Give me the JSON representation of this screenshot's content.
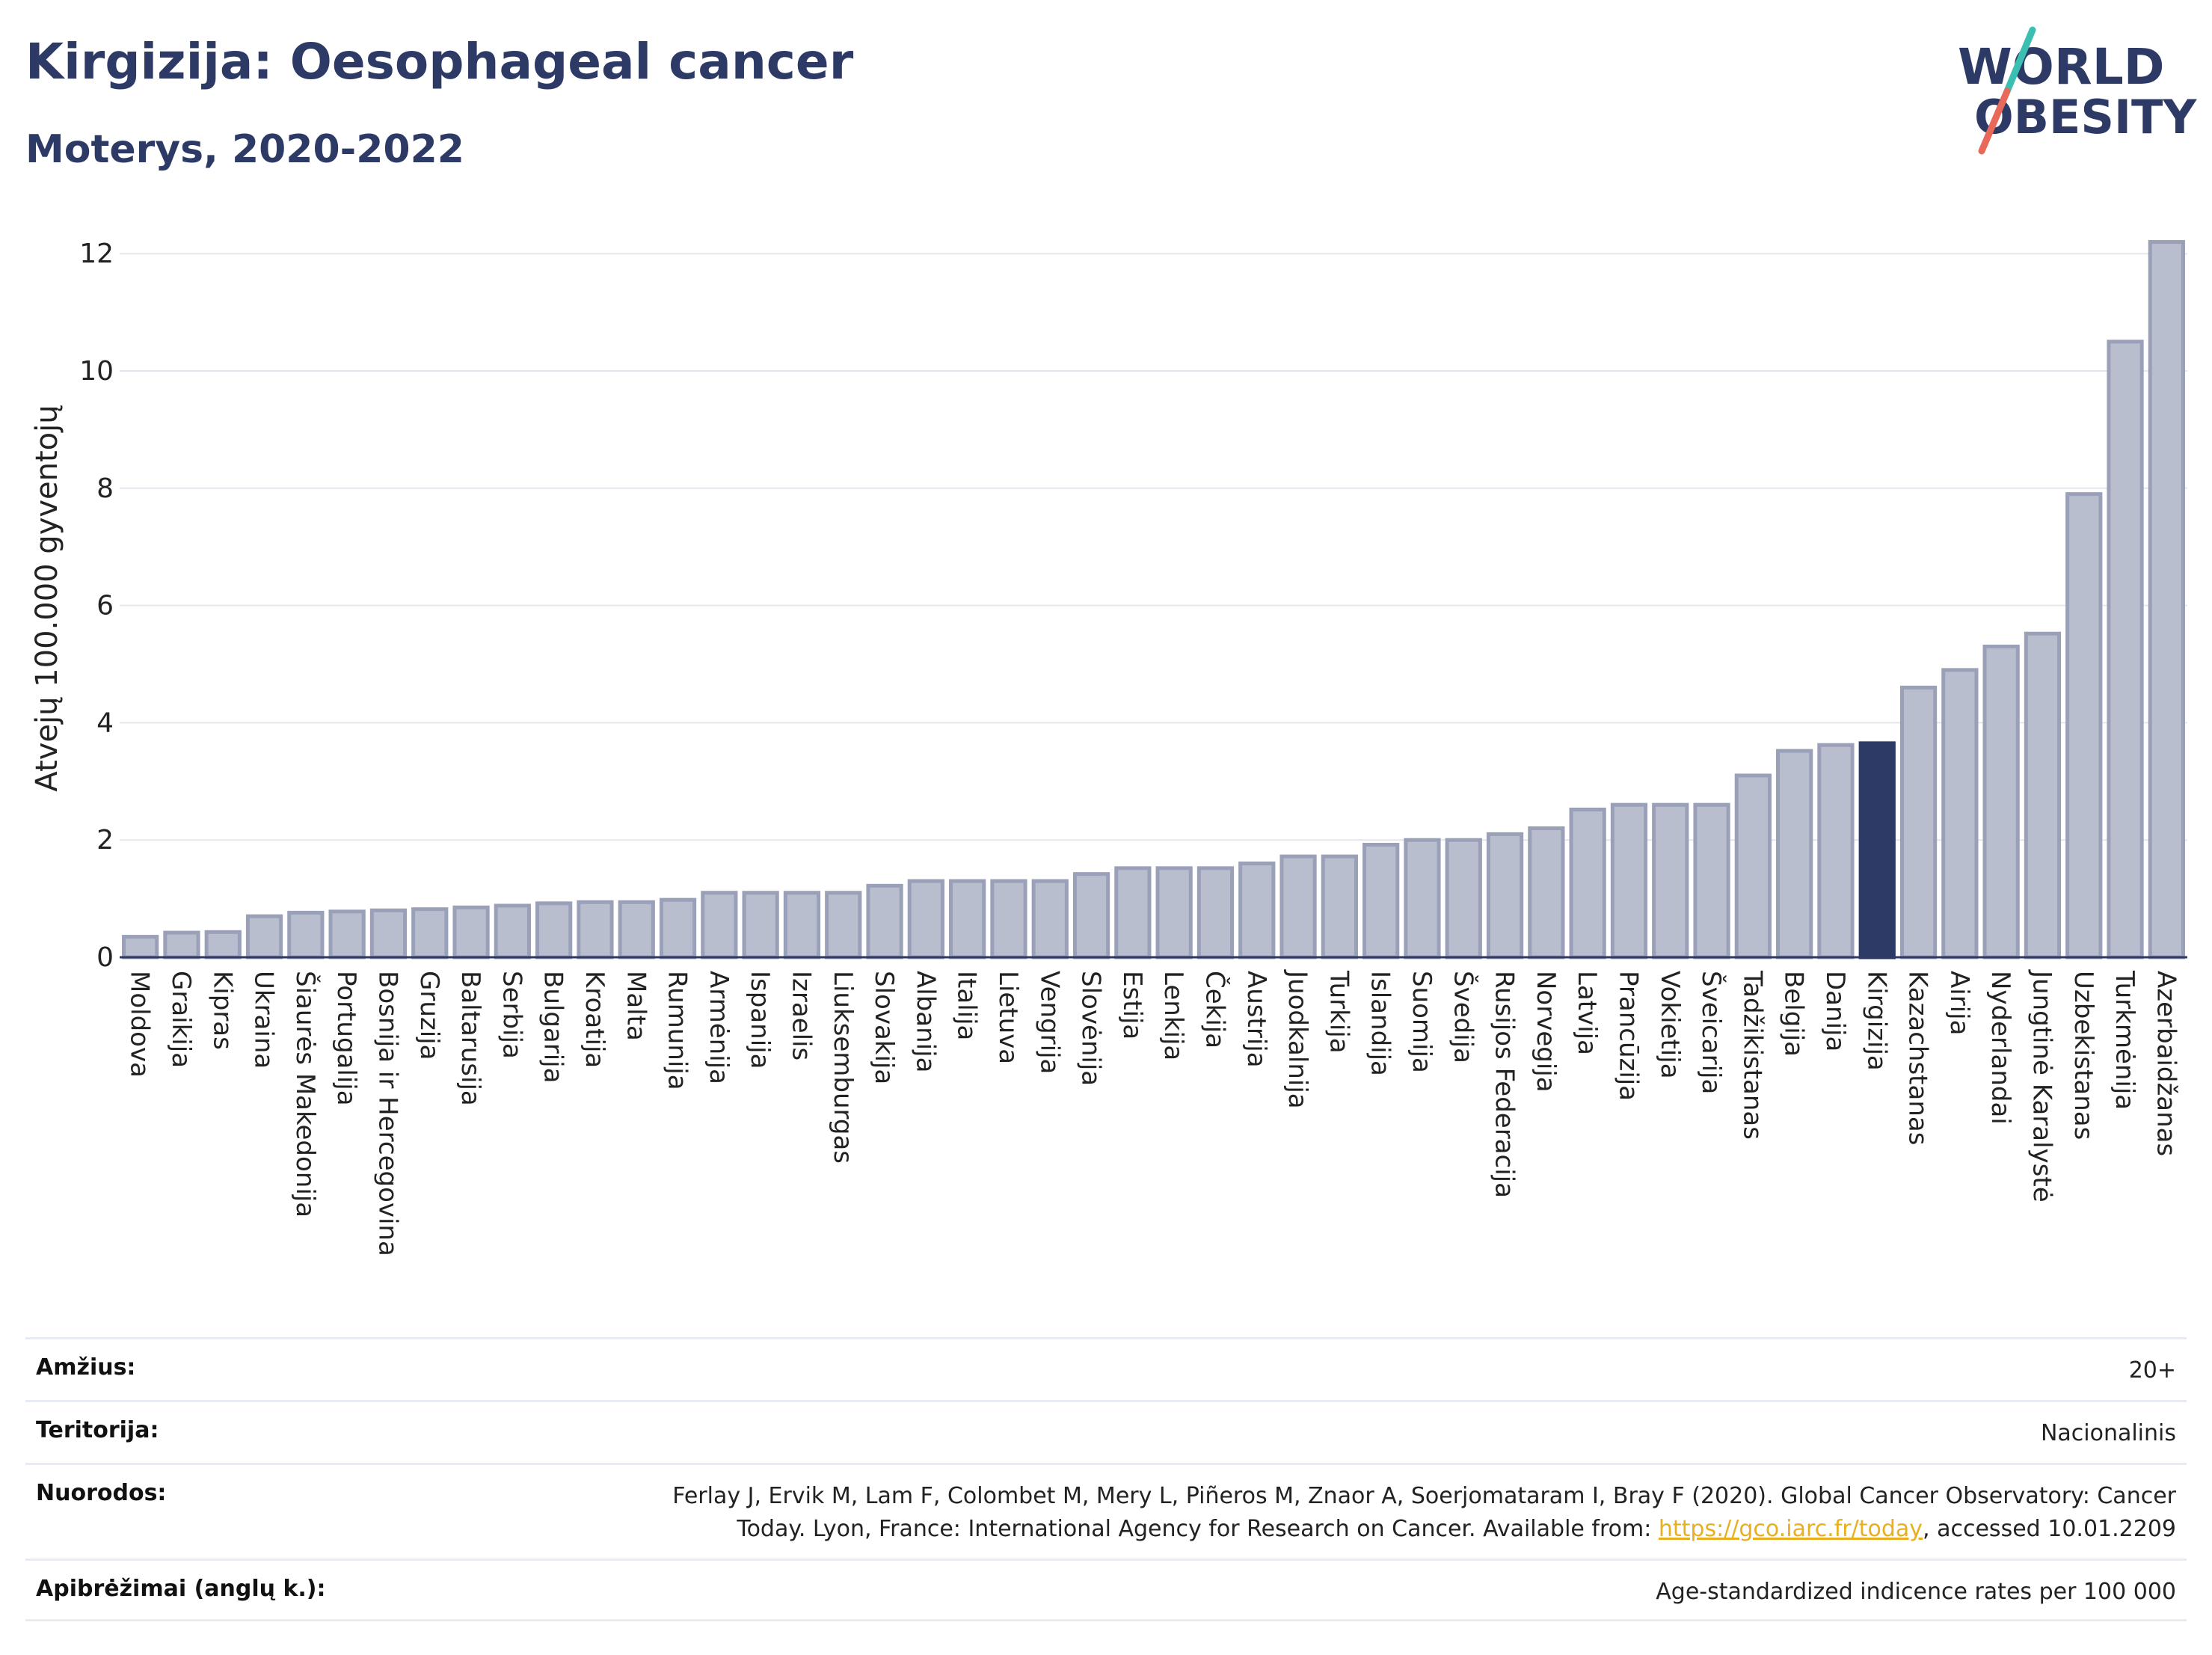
{
  "title": "Kirgizija: Oesophageal cancer",
  "subtitle": "Moterys, 2020-2022",
  "logo": {
    "line1": "WORLD",
    "line2": "OBESITY"
  },
  "colors": {
    "bar_fill": "#b9bece",
    "bar_stroke": "#9aa0b8",
    "highlight": "#2d3a66",
    "grid": "#e4e6ee",
    "logo_teal": "#3bbfb3",
    "logo_coral": "#e8685a"
  },
  "chart_data": {
    "type": "bar",
    "title": "Kirgizija: Oesophageal cancer",
    "subtitle": "Moterys, 2020-2022",
    "xlabel": "",
    "ylabel": "Atvejų 100.000 gyventojų",
    "ylim": [
      0,
      12.5
    ],
    "yticks": [
      0,
      2,
      4,
      6,
      8,
      10,
      12
    ],
    "grid": true,
    "highlight": "Kirgizija",
    "categories": [
      "Moldova",
      "Graikija",
      "Kipras",
      "Ukraina",
      "Šiaurės Makedonija",
      "Portugalija",
      "Bosnija ir Hercegovina",
      "Gruzija",
      "Baltarusija",
      "Serbija",
      "Bulgarija",
      "Kroatija",
      "Malta",
      "Rumunija",
      "Armėnija",
      "Ispanija",
      "Izraelis",
      "Liuksemburgas",
      "Slovakija",
      "Albanija",
      "Italija",
      "Lietuva",
      "Vengrija",
      "Slovėnija",
      "Estija",
      "Lenkija",
      "Čekija",
      "Austrija",
      "Juodkalnija",
      "Turkija",
      "Islandija",
      "Suomija",
      "Švedija",
      "Rusijos Federacija",
      "Norvegija",
      "Latvija",
      "Prancūzija",
      "Vokietija",
      "Šveicarija",
      "Tadžikistanas",
      "Belgija",
      "Danija",
      "Kirgizija",
      "Kazachstanas",
      "Airija",
      "Nyderlandai",
      "Jungtinė Karalystė",
      "Uzbekistanas",
      "Turkmėnija",
      "Azerbaidžanas"
    ],
    "values": [
      0.35,
      0.42,
      0.43,
      0.7,
      0.76,
      0.78,
      0.8,
      0.82,
      0.85,
      0.88,
      0.92,
      0.94,
      0.94,
      0.98,
      1.1,
      1.1,
      1.1,
      1.1,
      1.22,
      1.3,
      1.3,
      1.3,
      1.3,
      1.42,
      1.52,
      1.52,
      1.52,
      1.6,
      1.72,
      1.72,
      1.92,
      2.0,
      2.0,
      2.1,
      2.2,
      2.52,
      2.6,
      2.6,
      2.6,
      3.1,
      3.52,
      3.62,
      3.65,
      4.6,
      4.9,
      5.3,
      5.52,
      7.9,
      10.5,
      12.2
    ]
  },
  "info": [
    {
      "key": "Amžius:",
      "value": "20+"
    },
    {
      "key": "Teritorija:",
      "value": "Nacionalinis"
    },
    {
      "key": "Nuorodos:",
      "value_lines": [
        "Ferlay J, Ervik M, Lam F, Colombet M, Mery L, Piñeros M, Znaor A, Soerjomataram I, Bray F (2020). Global Cancer Observatory: Cancer"
      ],
      "value_before_link": "Today. Lyon, France: International Agency for Research on Cancer. Available from: ",
      "link": "https://gco.iarc.fr/today",
      "value_after_link": ", accessed 10.01.2209"
    },
    {
      "key": "Apibrėžimai (anglų k.):",
      "value": "Age-standardized indicence rates per 100 000"
    }
  ]
}
